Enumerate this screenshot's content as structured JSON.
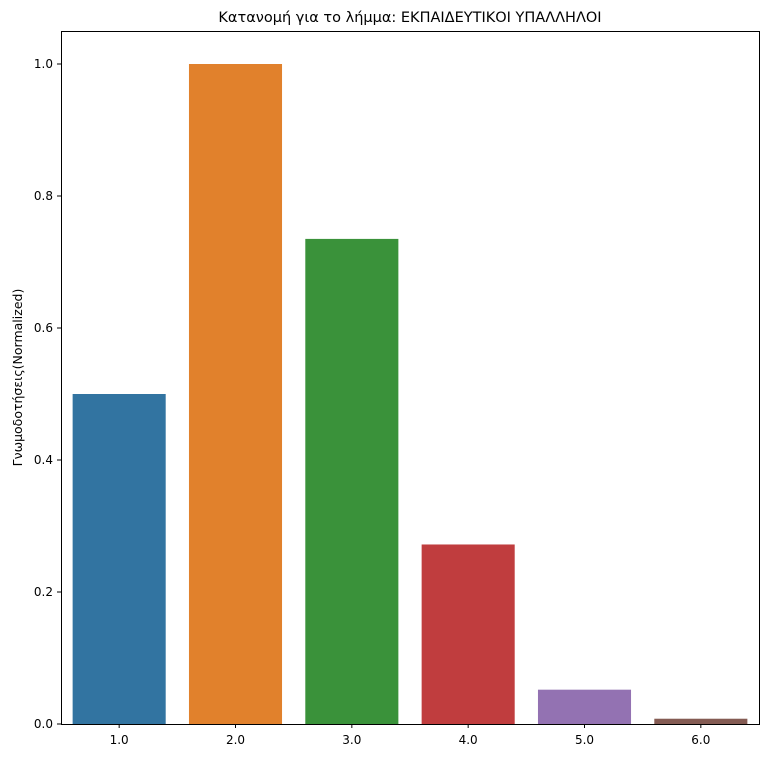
{
  "chart_data": {
    "type": "bar",
    "title": "Κατανομή για το λήμμα: ΕΚΠΑΙΔΕΥΤΙΚΟΙ ΥΠΑΛΛΗΛΟΙ",
    "xlabel": "",
    "ylabel": "Γνωμοδοτήσεις(Normalized)",
    "categories": [
      "1.0",
      "2.0",
      "3.0",
      "4.0",
      "5.0",
      "6.0"
    ],
    "values": [
      0.5,
      1.0,
      0.735,
      0.272,
      0.052,
      0.008
    ],
    "colors": [
      "#3274a1",
      "#e1812c",
      "#3a923a",
      "#c03d3e",
      "#9372b2",
      "#845b53"
    ],
    "ylim": [
      0,
      1.05
    ],
    "yticks": [
      "0.0",
      "0.2",
      "0.4",
      "0.6",
      "0.8",
      "1.0"
    ],
    "grid": false,
    "legend": "none"
  }
}
